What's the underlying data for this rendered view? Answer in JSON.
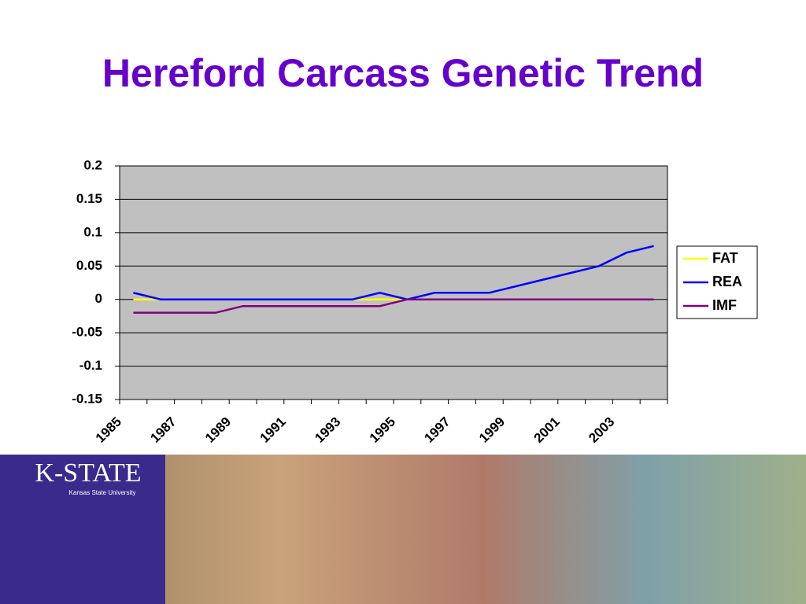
{
  "chart_data": {
    "type": "line",
    "title": "Hereford Carcass Genetic Trend",
    "categories": [
      "1985",
      null,
      "1987",
      null,
      "1989",
      null,
      "1991",
      null,
      "1993",
      null,
      "1995",
      null,
      "1997",
      null,
      "1999",
      null,
      "2001",
      null,
      "2003",
      null
    ],
    "series": [
      {
        "name": "FAT",
        "color": "#ffff00",
        "values": [
          0,
          0,
          0,
          0,
          0,
          0,
          0,
          0,
          0,
          0,
          0,
          0,
          0,
          0,
          0,
          0,
          0,
          0,
          0,
          0
        ]
      },
      {
        "name": "REA",
        "color": "#0000ff",
        "values": [
          0.01,
          0,
          0,
          0,
          0,
          0,
          0,
          0,
          0,
          0.01,
          0,
          0.01,
          0.01,
          0.01,
          0.02,
          0.03,
          0.04,
          0.05,
          0.07,
          0.08
        ]
      },
      {
        "name": "IMF",
        "color": "#800080",
        "values": [
          -0.02,
          -0.02,
          -0.02,
          -0.02,
          -0.01,
          -0.01,
          -0.01,
          -0.01,
          -0.01,
          -0.01,
          0,
          0,
          0,
          0,
          0,
          0,
          0,
          0,
          0,
          0
        ]
      }
    ],
    "ylim": [
      -0.15,
      0.2
    ],
    "yticks": [
      0.2,
      0.15,
      0.1,
      0.05,
      0,
      -0.05,
      -0.1,
      -0.15
    ],
    "grid": true,
    "legend": "right",
    "plot_background": "#c0c0c0"
  },
  "banner": {
    "logo": "K-STATE",
    "subtitle": "Kansas State University"
  }
}
